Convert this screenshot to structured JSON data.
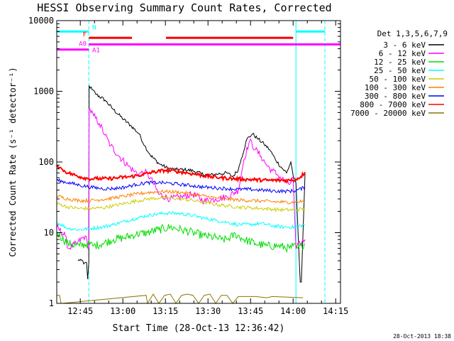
{
  "chart_data": {
    "type": "line",
    "title": "HESSI Observing Summary Count Rates, Corrected",
    "xlabel": "Start Time (28-Oct-13 12:36:42)",
    "ylabel": "Corrected Count Rate (s⁻¹ detector⁻¹)",
    "yscale": "log",
    "ylim": [
      1,
      10000
    ],
    "xlim_minutes_after_1236": [
      0,
      100
    ],
    "x_ticks": [
      "12:45",
      "13:00",
      "13:15",
      "13:30",
      "13:45",
      "14:00",
      "14:15"
    ],
    "x_tick_minutes": [
      8.3,
      23.3,
      38.3,
      53.3,
      68.3,
      83.3,
      98.3
    ],
    "y_ticks": [
      "1",
      "10",
      "100",
      "1000",
      "10000"
    ],
    "y_tick_values": [
      1,
      10,
      100,
      1000,
      10000
    ],
    "legend": {
      "header": "Det 1,3,5,6,7,9",
      "placement": "right",
      "entries": [
        {
          "label": "3 - 6 keV",
          "color": "#000000"
        },
        {
          "label": "6 - 12 keV",
          "color": "#ff00ff"
        },
        {
          "label": "12 - 25 keV",
          "color": "#00dd00"
        },
        {
          "label": "25 - 50 keV",
          "color": "#00ffff"
        },
        {
          "label": "50 - 100 keV",
          "color": "#cccc00"
        },
        {
          "label": "100 - 300 keV",
          "color": "#ff7f00"
        },
        {
          "label": "300 - 800 keV",
          "color": "#0000ff"
        },
        {
          "label": "800 - 7000 keV",
          "color": "#ff0000"
        },
        {
          "label": "7000 - 20000 keV",
          "color": "#8b7500"
        }
      ]
    },
    "flag_bars": [
      {
        "label": "N",
        "color": "#00ffff",
        "y": 7000,
        "segments": [
          [
            0,
            11.3
          ],
          [
            84.3,
            94.5
          ]
        ]
      },
      {
        "label": "F",
        "color": "#ff0000",
        "y": 5700,
        "segments": [
          [
            11.3,
            26.5
          ],
          [
            38.5,
            83.3
          ]
        ]
      },
      {
        "label": "A0",
        "color": "#ff00ff",
        "y": 4600,
        "segments": [
          [
            11.3,
            100
          ]
        ]
      },
      {
        "label": "A1",
        "color": "#ff00ff",
        "y": 3900,
        "segments": [
          [
            0,
            11.3
          ]
        ]
      }
    ],
    "vertical_markers": [
      {
        "color": "#00ffff",
        "dashed": false,
        "x": 0
      },
      {
        "color": "#00ffff",
        "dashed": true,
        "x": 11.3
      },
      {
        "color": "#00ffff",
        "dashed": false,
        "x": 84.3
      },
      {
        "color": "#00ffff",
        "dashed": true,
        "x": 94.5
      }
    ],
    "series": [
      {
        "name": "3 - 6 keV",
        "color": "#000000",
        "x": [
          7.5,
          8.5,
          9.5,
          10.5,
          10.9,
          11.3,
          11.4,
          12.5,
          14,
          17,
          20,
          23,
          26,
          29,
          31,
          33,
          36,
          39,
          42,
          45,
          48,
          51,
          54,
          57,
          60,
          62,
          64,
          65,
          67,
          69,
          71,
          73,
          75,
          77,
          79,
          81,
          82.5,
          83.3,
          84.3,
          85.8,
          86.2,
          87.5
        ],
        "y": [
          4,
          4.2,
          3.6,
          3.8,
          2.2,
          3.8,
          1200,
          1050,
          900,
          750,
          550,
          420,
          330,
          250,
          170,
          125,
          95,
          82,
          78,
          78,
          75,
          68,
          65,
          68,
          70,
          62,
          78,
          110,
          210,
          250,
          210,
          180,
          150,
          110,
          85,
          70,
          100,
          65,
          50,
          2,
          2,
          68
        ]
      },
      {
        "name": "6 - 12 keV",
        "color": "#ff00ff",
        "x": [
          0,
          3,
          4,
          7,
          10,
          11.3,
          11.4,
          13,
          15,
          17,
          19,
          22,
          25,
          27,
          29,
          31,
          33,
          36,
          40,
          44,
          48,
          52,
          56,
          60,
          64,
          66,
          68,
          70,
          72,
          74,
          76,
          78,
          80,
          82,
          83.3,
          84.3,
          85.8,
          87.5
        ],
        "y": [
          12,
          9,
          6,
          7,
          9,
          6,
          570,
          450,
          350,
          240,
          170,
          120,
          90,
          75,
          68,
          72,
          60,
          35,
          30,
          32,
          35,
          28,
          30,
          32,
          40,
          110,
          200,
          150,
          120,
          90,
          75,
          65,
          55,
          48,
          60,
          6,
          7,
          8
        ]
      },
      {
        "name": "12 - 25 keV",
        "color": "#00dd00",
        "x": [
          0,
          4,
          8,
          11,
          13,
          16,
          20,
          24,
          28,
          32,
          36,
          40,
          44,
          48,
          52,
          56,
          58,
          60,
          63,
          66,
          70,
          74,
          78,
          82,
          83.3,
          85,
          87.5
        ],
        "y": [
          10,
          7,
          6.5,
          7,
          6.5,
          7,
          8,
          8.5,
          9.5,
          10,
          11,
          12,
          11,
          10,
          9,
          8.5,
          8,
          8,
          9.5,
          8,
          7,
          6.5,
          6.5,
          6,
          6.5,
          6,
          7
        ]
      },
      {
        "name": "25 - 50 keV",
        "color": "#00ffff",
        "x": [
          0,
          4,
          8,
          12,
          16,
          20,
          24,
          28,
          32,
          36,
          40,
          44,
          48,
          52,
          56,
          60,
          64,
          68,
          72,
          76,
          80,
          84,
          87.5
        ],
        "y": [
          14,
          11.5,
          11,
          11.5,
          12,
          13,
          14.5,
          16,
          17.5,
          18.5,
          19,
          18.5,
          17.5,
          16,
          15,
          14,
          13,
          13,
          13.5,
          12.5,
          12,
          12,
          13
        ]
      },
      {
        "name": "50 - 100 keV",
        "color": "#cccc00",
        "x": [
          0,
          4,
          8,
          12,
          16,
          20,
          24,
          28,
          32,
          36,
          40,
          44,
          48,
          52,
          56,
          60,
          64,
          68,
          72,
          76,
          80,
          84,
          87.5
        ],
        "y": [
          26,
          23,
          22,
          22,
          22.5,
          24,
          26,
          28,
          30,
          31,
          31,
          30,
          28.5,
          27,
          25,
          24,
          23,
          22.5,
          22,
          21.5,
          21,
          21,
          22
        ]
      },
      {
        "name": "100 - 300 keV",
        "color": "#ff7f00",
        "x": [
          0,
          4,
          8,
          12,
          16,
          20,
          24,
          28,
          32,
          36,
          40,
          44,
          48,
          52,
          56,
          60,
          64,
          68,
          72,
          76,
          80,
          84,
          87.5
        ],
        "y": [
          33,
          30,
          28.5,
          28.5,
          29.5,
          31,
          33,
          35,
          37,
          38,
          38,
          37,
          35,
          33,
          31,
          30,
          29,
          28.5,
          28,
          27.5,
          27,
          27,
          28
        ]
      },
      {
        "name": "300 - 800 keV",
        "color": "#0000ff",
        "x": [
          0,
          4,
          8,
          12,
          16,
          20,
          24,
          28,
          32,
          36,
          40,
          44,
          48,
          52,
          56,
          60,
          64,
          68,
          72,
          76,
          80,
          84,
          87.5
        ],
        "y": [
          55,
          51,
          47,
          44,
          42,
          42,
          44,
          48,
          51,
          51,
          50,
          48,
          46,
          44,
          43,
          42,
          41,
          41,
          40,
          39,
          38.5,
          39,
          44
        ]
      },
      {
        "name": "800 - 7000 keV",
        "color": "#ff0000",
        "x": [
          0,
          2,
          4,
          8,
          11.3,
          14,
          18,
          22,
          26,
          30,
          34,
          38,
          42,
          46,
          50,
          54,
          58,
          62,
          66,
          70,
          74,
          78,
          82,
          84,
          86,
          87.5
        ],
        "y": [
          90,
          78,
          70,
          62,
          58,
          58,
          58,
          60,
          62,
          66,
          72,
          76,
          74,
          70,
          66,
          62,
          60,
          58,
          57,
          56,
          55,
          55,
          55,
          56,
          62,
          72
        ]
      },
      {
        "name": "7000 - 20000 keV",
        "color": "#8b7500",
        "x": [
          0,
          1,
          1.5,
          2,
          31.5,
          32,
          34,
          36,
          38,
          40,
          42,
          44,
          46,
          48,
          50,
          52,
          54,
          56,
          58,
          60,
          62,
          64,
          70,
          74,
          76,
          86.8
        ],
        "y": [
          1.3,
          1.3,
          1,
          1,
          1.3,
          1,
          1.35,
          1,
          1.3,
          1.35,
          1,
          1.3,
          1.35,
          1.3,
          1,
          1.3,
          1.35,
          1,
          1.3,
          1.3,
          1,
          1.25,
          1.25,
          1.2,
          1.25,
          1.2
        ]
      }
    ]
  },
  "timestamp": "28-Oct-2013 18:38"
}
